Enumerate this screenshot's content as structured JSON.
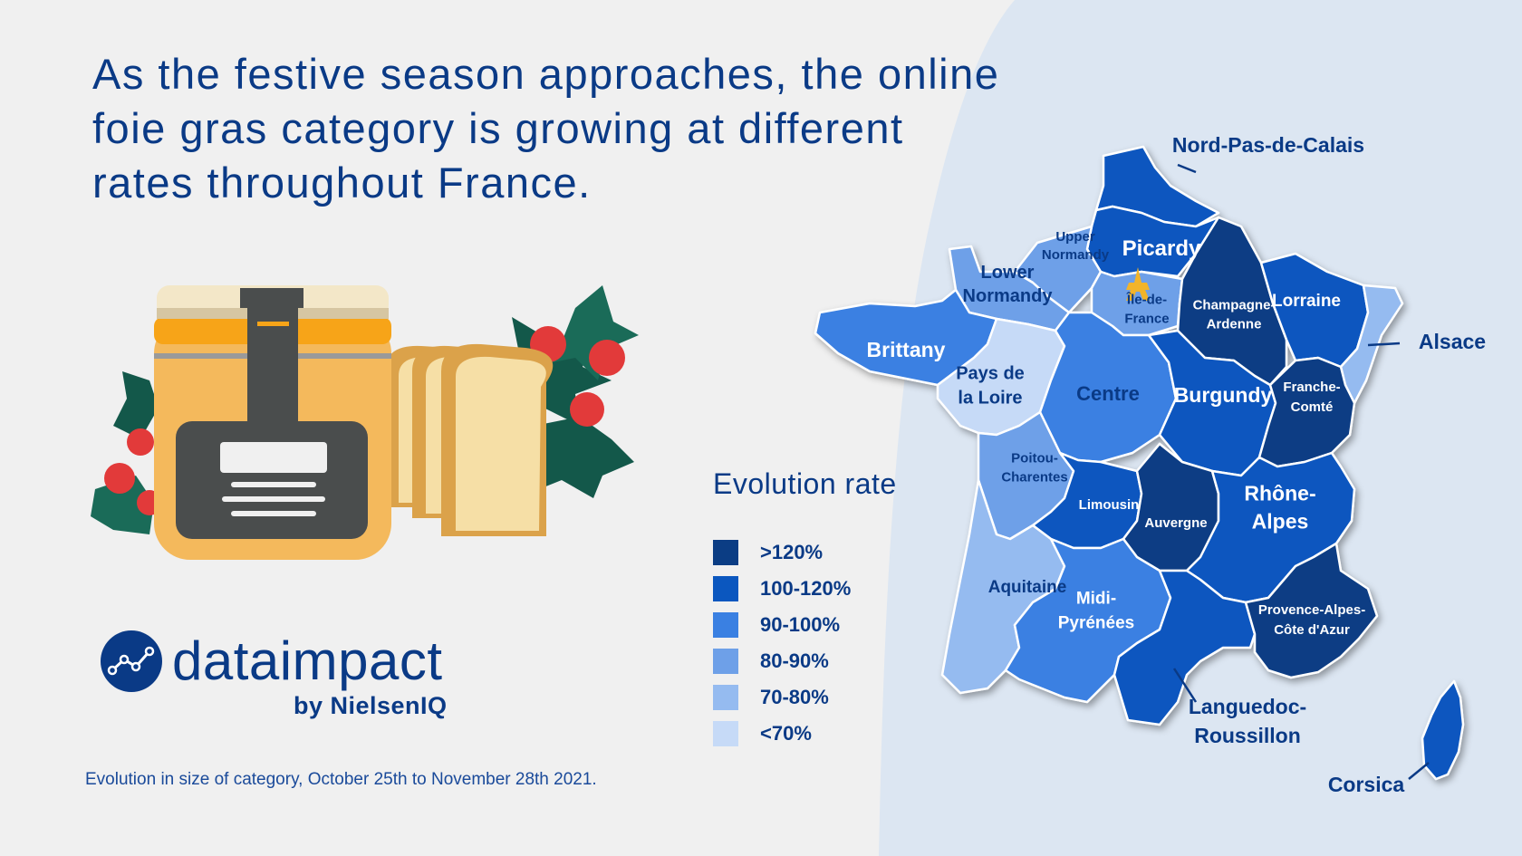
{
  "headline": {
    "line1": "As the festive season approaches, the online",
    "line2": "foie gras category is growing at different",
    "line3": "rates throughout France."
  },
  "logo": {
    "name": "dataimpact",
    "sub": "by NielsenIQ"
  },
  "caption": "Evolution in size of category, October 25th to November 28th 2021.",
  "legend": {
    "title": "Evolution rate",
    "items": [
      {
        "label": ">120%",
        "color": "#0b3d84"
      },
      {
        "label": "100-120%",
        "color": "#0b57bf"
      },
      {
        "label": "90-100%",
        "color": "#3a80e2"
      },
      {
        "label": "80-90%",
        "color": "#6ea0e8"
      },
      {
        "label": "70-80%",
        "color": "#95bbf0"
      },
      {
        "label": "<70%",
        "color": "#c6daf7"
      }
    ]
  },
  "regions": {
    "nord": {
      "name": "Nord-Pas-de-Calais",
      "cls": "100-120%"
    },
    "picardy": {
      "name": "Picardy",
      "cls": "100-120%"
    },
    "upper_normandy": {
      "name": "Upper Normandy",
      "cls": "80-90%"
    },
    "lower_normandy": {
      "name": "Lower Normandy",
      "cls": "80-90%"
    },
    "idf": {
      "name": "Île-de-France",
      "cls": "80-90%"
    },
    "champagne": {
      "name": "Champagne-Ardenne",
      "cls": ">120%"
    },
    "lorraine": {
      "name": "Lorraine",
      "cls": "100-120%"
    },
    "alsace": {
      "name": "Alsace",
      "cls": "70-80%"
    },
    "brittany": {
      "name": "Brittany",
      "cls": "90-100%"
    },
    "pays_loire": {
      "name": "Pays de la Loire",
      "cls": "<70%"
    },
    "centre": {
      "name": "Centre",
      "cls": "90-100%"
    },
    "burgundy": {
      "name": "Burgundy",
      "cls": "100-120%"
    },
    "franche": {
      "name": "Franche-Comté",
      "cls": ">120%"
    },
    "poitou": {
      "name": "Poitou-Charentes",
      "cls": "80-90%"
    },
    "limousin": {
      "name": "Limousin",
      "cls": "100-120%"
    },
    "auvergne": {
      "name": "Auvergne",
      "cls": ">120%"
    },
    "rhone": {
      "name": "Rhône-Alpes",
      "cls": "100-120%"
    },
    "aquitaine": {
      "name": "Aquitaine",
      "cls": "70-80%"
    },
    "midi": {
      "name": "Midi-Pyrénées",
      "cls": "90-100%"
    },
    "languedoc": {
      "name": "Languedoc-Roussillon",
      "cls": "100-120%"
    },
    "paca": {
      "name": "Provence-Alpes-Côte d'Azur",
      "cls": ">120%"
    },
    "corsica": {
      "name": "Corsica",
      "cls": "100-120%"
    }
  },
  "labels": {
    "nord": "Nord-Pas-de-Calais",
    "picardy": "Picardy",
    "upper_normandy": [
      "Upper",
      "Normandy"
    ],
    "lower_normandy": [
      "Lower",
      "Normandy"
    ],
    "idf": [
      "Île-de-",
      "France"
    ],
    "champagne": [
      "Champagne-",
      "Ardenne"
    ],
    "lorraine": "Lorraine",
    "alsace": "Alsace",
    "brittany": "Brittany",
    "pays_loire": [
      "Pays de",
      "la Loire"
    ],
    "centre": "Centre",
    "burgundy": "Burgundy",
    "franche": [
      "Franche-",
      "Comté"
    ],
    "poitou": [
      "Poitou-",
      "Charentes"
    ],
    "limousin": "Limousin",
    "auvergne": "Auvergne",
    "rhone": [
      "Rhône-",
      "Alpes"
    ],
    "aquitaine": "Aquitaine",
    "midi": [
      "Midi-",
      "Pyrénées"
    ],
    "languedoc": [
      "Languedoc-",
      "Roussillon"
    ],
    "paca": [
      "Provence-Alpes-",
      "Côte d'Azur"
    ],
    "corsica": "Corsica"
  },
  "icons": {
    "paris": "eiffel-tower-icon",
    "logo": "line-chart-icon",
    "jar": "foie-gras-jar-icon"
  }
}
